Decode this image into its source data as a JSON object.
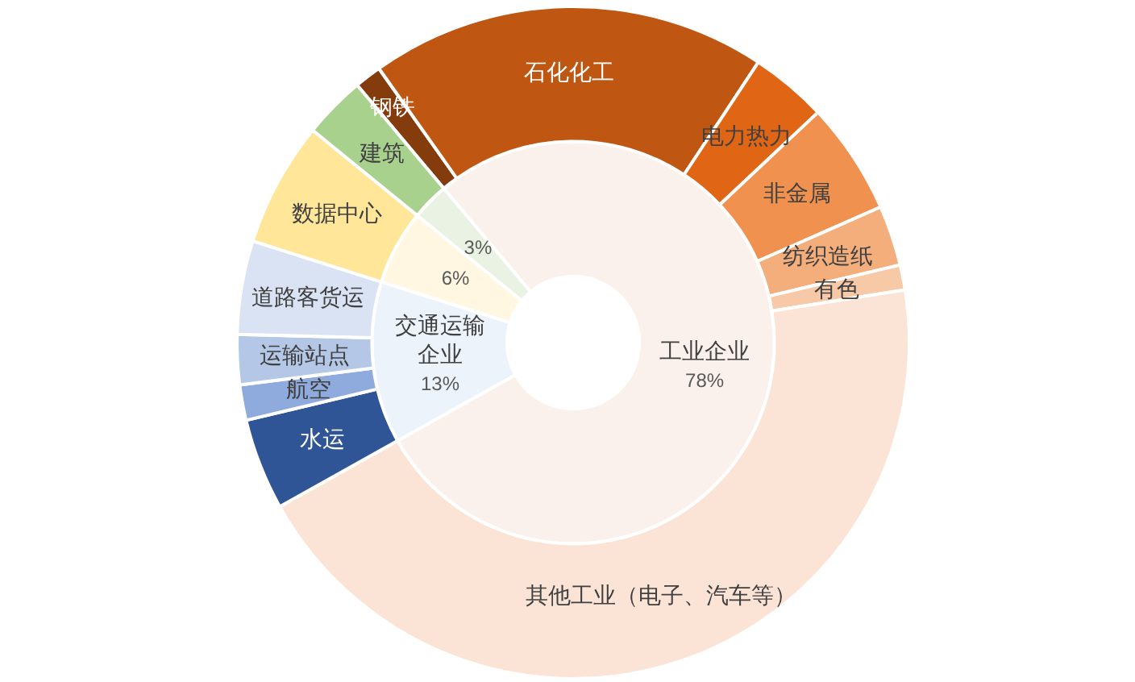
{
  "chart_data": [
    {
      "type": "donut",
      "categories": [
        "工业企业",
        "交通运输企业",
        null,
        null
      ],
      "values": [
        78,
        13,
        6,
        3
      ],
      "value_labels": [
        "78%",
        "13%",
        "6%",
        "3%"
      ],
      "colors": [
        "#fbf1ec",
        "#edf3fa",
        "#fff7e1",
        "#eaf3e3"
      ]
    },
    {
      "type": "donut",
      "categories": [
        "钢铁",
        "石化化工",
        "电力热力",
        "非金属",
        "纺织造纸",
        "有色",
        "其他工业（电子、汽车等）",
        "水运",
        "航空",
        "运输站点",
        "道路客货运",
        "数据中心",
        "建筑"
      ],
      "values": [
        1.3,
        19.1,
        3.7,
        5.4,
        2.9,
        1.2,
        44.4,
        4.4,
        1.7,
        2.4,
        4.5,
        6,
        3
      ],
      "colors": [
        "#843c0c",
        "#bf5712",
        "#e06615",
        "#f0914f",
        "#f4ae7c",
        "#f8c9a6",
        "#fbe3d5",
        "#2f5597",
        "#8faadc",
        "#b4c7e7",
        "#dae3f3",
        "#ffe699",
        "#a9d18e"
      ]
    }
  ]
}
